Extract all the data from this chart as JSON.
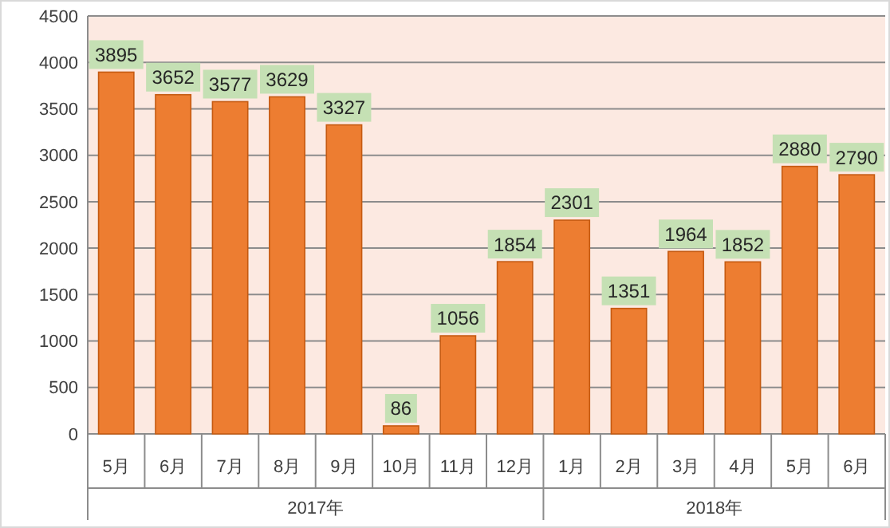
{
  "chart_data": {
    "type": "bar",
    "categories": [
      "5月",
      "6月",
      "7月",
      "8月",
      "9月",
      "10月",
      "11月",
      "12月",
      "1月",
      "2月",
      "3月",
      "4月",
      "5月",
      "6月"
    ],
    "values": [
      3895,
      3652,
      3577,
      3629,
      3327,
      86,
      1056,
      1854,
      2301,
      1351,
      1964,
      1852,
      2880,
      2790
    ],
    "color": "#ed7d31",
    "ylim": [
      0,
      4500
    ],
    "yticks": [
      0,
      500,
      1000,
      1500,
      2000,
      2500,
      3000,
      3500,
      4000,
      4500
    ],
    "grid": "y",
    "data_labels": true,
    "annotations": [
      "2017年",
      "2018年"
    ]
  }
}
